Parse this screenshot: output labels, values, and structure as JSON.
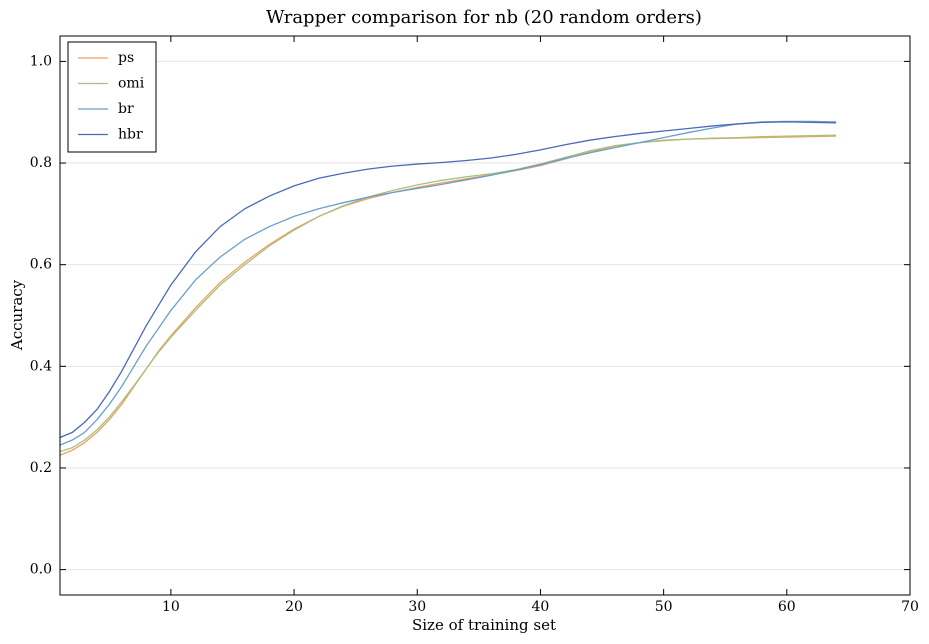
{
  "chart_data": {
    "type": "line",
    "title": "Wrapper comparison for nb (20 random orders)",
    "x_label": "Size of training set",
    "y_label": "Accuracy",
    "x": [
      1,
      2,
      3,
      4,
      5,
      6,
      7,
      8,
      9,
      10,
      12,
      14,
      16,
      18,
      20,
      22,
      24,
      26,
      28,
      30,
      32,
      34,
      36,
      38,
      40,
      42,
      44,
      46,
      48,
      50,
      52,
      54,
      56,
      58,
      60,
      62,
      64
    ],
    "series": [
      {
        "name": "ps",
        "color": "#f0a060",
        "values": [
          0.225,
          0.235,
          0.25,
          0.27,
          0.295,
          0.325,
          0.36,
          0.395,
          0.43,
          0.46,
          0.515,
          0.565,
          0.605,
          0.64,
          0.67,
          0.695,
          0.715,
          0.73,
          0.742,
          0.752,
          0.761,
          0.769,
          0.777,
          0.785,
          0.795,
          0.808,
          0.822,
          0.833,
          0.84,
          0.845,
          0.847,
          0.848,
          0.849,
          0.85,
          0.851,
          0.852,
          0.853
        ]
      },
      {
        "name": "omi",
        "color": "#a8c080",
        "values": [
          0.232,
          0.24,
          0.255,
          0.275,
          0.3,
          0.33,
          0.362,
          0.395,
          0.428,
          0.457,
          0.51,
          0.56,
          0.6,
          0.637,
          0.668,
          0.695,
          0.716,
          0.733,
          0.746,
          0.757,
          0.766,
          0.773,
          0.779,
          0.787,
          0.798,
          0.811,
          0.824,
          0.834,
          0.84,
          0.844,
          0.847,
          0.849,
          0.85,
          0.852,
          0.853,
          0.854,
          0.855
        ]
      },
      {
        "name": "br",
        "color": "#6a9fcc",
        "values": [
          0.245,
          0.255,
          0.27,
          0.295,
          0.325,
          0.36,
          0.4,
          0.44,
          0.475,
          0.51,
          0.57,
          0.615,
          0.65,
          0.675,
          0.695,
          0.71,
          0.722,
          0.733,
          0.742,
          0.75,
          0.758,
          0.767,
          0.776,
          0.786,
          0.797,
          0.809,
          0.82,
          0.83,
          0.84,
          0.85,
          0.86,
          0.869,
          0.877,
          0.881,
          0.882,
          0.882,
          0.881
        ]
      },
      {
        "name": "hbr",
        "color": "#4a6ab8",
        "values": [
          0.26,
          0.27,
          0.29,
          0.315,
          0.35,
          0.39,
          0.435,
          0.48,
          0.52,
          0.56,
          0.625,
          0.675,
          0.71,
          0.735,
          0.755,
          0.77,
          0.78,
          0.788,
          0.794,
          0.798,
          0.801,
          0.805,
          0.81,
          0.817,
          0.826,
          0.836,
          0.845,
          0.852,
          0.858,
          0.863,
          0.868,
          0.873,
          0.877,
          0.88,
          0.881,
          0.88,
          0.879
        ]
      }
    ],
    "xlim": [
      1,
      70
    ],
    "xticks": [
      10,
      20,
      30,
      40,
      50,
      60,
      70
    ],
    "ylim": [
      -0.05,
      1.05
    ],
    "yticks": [
      {
        "value": 0,
        "label": "0.0"
      },
      {
        "value": 0.2,
        "label": "0.2"
      },
      {
        "value": 0.4,
        "label": "0.4"
      },
      {
        "value": 0.6,
        "label": "0.6"
      },
      {
        "value": 0.8,
        "label": "0.8"
      },
      {
        "value": 1,
        "label": "1.0"
      }
    ],
    "grid": true,
    "legend": "upper left"
  }
}
